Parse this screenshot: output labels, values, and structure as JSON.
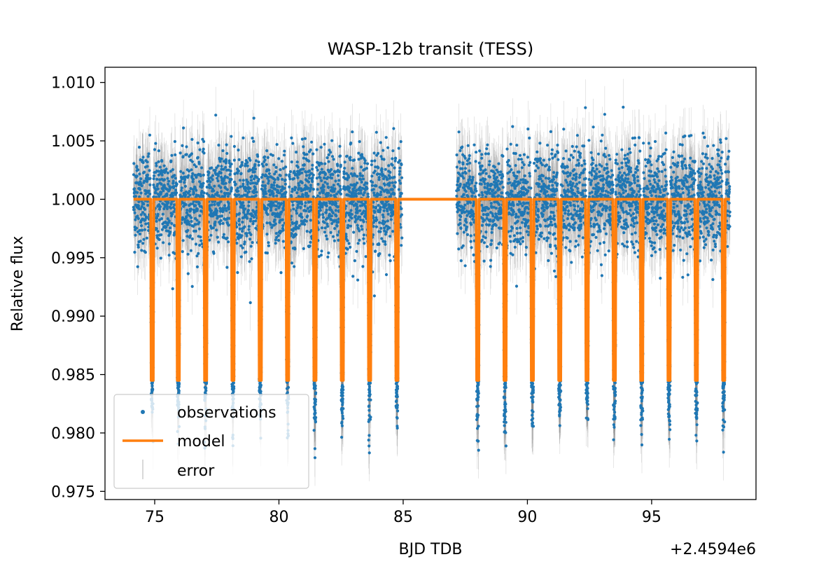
{
  "chart_data": {
    "type": "scatter",
    "title": "WASP-12b transit (TESS)",
    "xlabel": "BJD TDB",
    "ylabel": "Relative flux",
    "x_offset_label": "+2.4594e6",
    "xlim": [
      73.0,
      99.2
    ],
    "ylim": [
      0.9743,
      1.0113
    ],
    "xticks": [
      75,
      80,
      85,
      90,
      95
    ],
    "xtick_labels": [
      "75",
      "80",
      "85",
      "90",
      "95"
    ],
    "yticks": [
      0.975,
      0.98,
      0.985,
      0.99,
      0.995,
      1.0,
      1.005,
      1.01
    ],
    "ytick_labels": [
      "0.975",
      "0.980",
      "0.985",
      "0.990",
      "0.995",
      "1.000",
      "1.005",
      "1.010"
    ],
    "grid": false,
    "legend_position": "lower-left",
    "segments": [
      {
        "start": 74.15,
        "end": 84.95
      },
      {
        "start": 87.15,
        "end": 98.15
      }
    ],
    "baseline_flux": 1.0,
    "noise_sigma": 0.0022,
    "transit_depth": 0.0155,
    "transit_duration_days": 0.12,
    "transit_centers": [
      74.9,
      75.95,
      77.05,
      78.15,
      79.25,
      80.35,
      81.45,
      82.55,
      83.65,
      84.75,
      88.0,
      89.1,
      90.2,
      91.3,
      92.4,
      93.5,
      94.6,
      95.7,
      96.8,
      97.9
    ],
    "series": [
      {
        "name": "observations",
        "color": "#1f77b4",
        "marker": "dot"
      },
      {
        "name": "model",
        "color": "#ff7f0e",
        "marker": "line"
      },
      {
        "name": "error",
        "color": "#808080",
        "marker": "errorbar"
      }
    ]
  }
}
